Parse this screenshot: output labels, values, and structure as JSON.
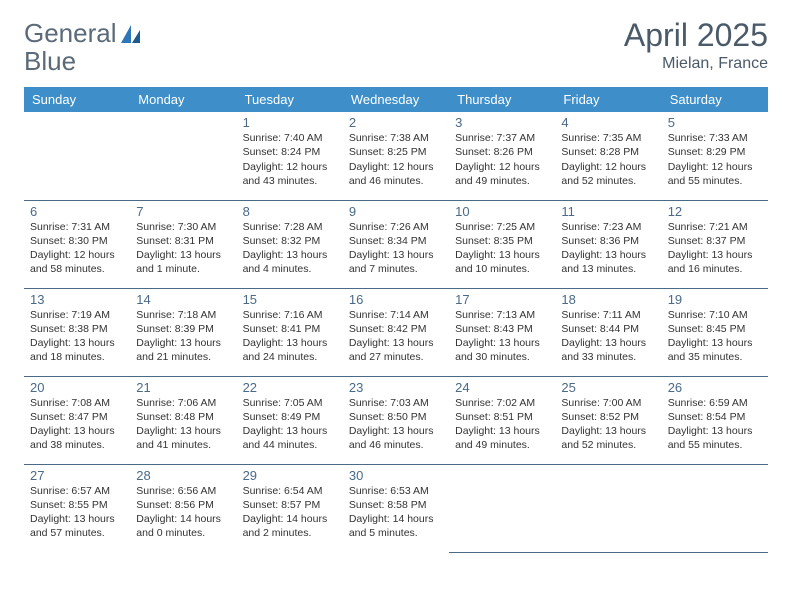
{
  "brand": {
    "part1": "General",
    "part2": "Blue"
  },
  "brand_colors": {
    "text": "#5a6a78",
    "accent": "#2f76b8"
  },
  "header_bg": "#3d8ec9",
  "title": "April 2025",
  "location": "Mielan, France",
  "day_headers": [
    "Sunday",
    "Monday",
    "Tuesday",
    "Wednesday",
    "Thursday",
    "Friday",
    "Saturday"
  ],
  "weeks": [
    [
      null,
      null,
      {
        "n": "1",
        "sr": "7:40 AM",
        "ss": "8:24 PM",
        "dl": "12 hours and 43 minutes."
      },
      {
        "n": "2",
        "sr": "7:38 AM",
        "ss": "8:25 PM",
        "dl": "12 hours and 46 minutes."
      },
      {
        "n": "3",
        "sr": "7:37 AM",
        "ss": "8:26 PM",
        "dl": "12 hours and 49 minutes."
      },
      {
        "n": "4",
        "sr": "7:35 AM",
        "ss": "8:28 PM",
        "dl": "12 hours and 52 minutes."
      },
      {
        "n": "5",
        "sr": "7:33 AM",
        "ss": "8:29 PM",
        "dl": "12 hours and 55 minutes."
      }
    ],
    [
      {
        "n": "6",
        "sr": "7:31 AM",
        "ss": "8:30 PM",
        "dl": "12 hours and 58 minutes."
      },
      {
        "n": "7",
        "sr": "7:30 AM",
        "ss": "8:31 PM",
        "dl": "13 hours and 1 minute."
      },
      {
        "n": "8",
        "sr": "7:28 AM",
        "ss": "8:32 PM",
        "dl": "13 hours and 4 minutes."
      },
      {
        "n": "9",
        "sr": "7:26 AM",
        "ss": "8:34 PM",
        "dl": "13 hours and 7 minutes."
      },
      {
        "n": "10",
        "sr": "7:25 AM",
        "ss": "8:35 PM",
        "dl": "13 hours and 10 minutes."
      },
      {
        "n": "11",
        "sr": "7:23 AM",
        "ss": "8:36 PM",
        "dl": "13 hours and 13 minutes."
      },
      {
        "n": "12",
        "sr": "7:21 AM",
        "ss": "8:37 PM",
        "dl": "13 hours and 16 minutes."
      }
    ],
    [
      {
        "n": "13",
        "sr": "7:19 AM",
        "ss": "8:38 PM",
        "dl": "13 hours and 18 minutes."
      },
      {
        "n": "14",
        "sr": "7:18 AM",
        "ss": "8:39 PM",
        "dl": "13 hours and 21 minutes."
      },
      {
        "n": "15",
        "sr": "7:16 AM",
        "ss": "8:41 PM",
        "dl": "13 hours and 24 minutes."
      },
      {
        "n": "16",
        "sr": "7:14 AM",
        "ss": "8:42 PM",
        "dl": "13 hours and 27 minutes."
      },
      {
        "n": "17",
        "sr": "7:13 AM",
        "ss": "8:43 PM",
        "dl": "13 hours and 30 minutes."
      },
      {
        "n": "18",
        "sr": "7:11 AM",
        "ss": "8:44 PM",
        "dl": "13 hours and 33 minutes."
      },
      {
        "n": "19",
        "sr": "7:10 AM",
        "ss": "8:45 PM",
        "dl": "13 hours and 35 minutes."
      }
    ],
    [
      {
        "n": "20",
        "sr": "7:08 AM",
        "ss": "8:47 PM",
        "dl": "13 hours and 38 minutes."
      },
      {
        "n": "21",
        "sr": "7:06 AM",
        "ss": "8:48 PM",
        "dl": "13 hours and 41 minutes."
      },
      {
        "n": "22",
        "sr": "7:05 AM",
        "ss": "8:49 PM",
        "dl": "13 hours and 44 minutes."
      },
      {
        "n": "23",
        "sr": "7:03 AM",
        "ss": "8:50 PM",
        "dl": "13 hours and 46 minutes."
      },
      {
        "n": "24",
        "sr": "7:02 AM",
        "ss": "8:51 PM",
        "dl": "13 hours and 49 minutes."
      },
      {
        "n": "25",
        "sr": "7:00 AM",
        "ss": "8:52 PM",
        "dl": "13 hours and 52 minutes."
      },
      {
        "n": "26",
        "sr": "6:59 AM",
        "ss": "8:54 PM",
        "dl": "13 hours and 55 minutes."
      }
    ],
    [
      {
        "n": "27",
        "sr": "6:57 AM",
        "ss": "8:55 PM",
        "dl": "13 hours and 57 minutes."
      },
      {
        "n": "28",
        "sr": "6:56 AM",
        "ss": "8:56 PM",
        "dl": "14 hours and 0 minutes."
      },
      {
        "n": "29",
        "sr": "6:54 AM",
        "ss": "8:57 PM",
        "dl": "14 hours and 2 minutes."
      },
      {
        "n": "30",
        "sr": "6:53 AM",
        "ss": "8:58 PM",
        "dl": "14 hours and 5 minutes."
      },
      null,
      null,
      null
    ]
  ],
  "labels": {
    "sunrise": "Sunrise:",
    "sunset": "Sunset:",
    "daylight": "Daylight:"
  }
}
